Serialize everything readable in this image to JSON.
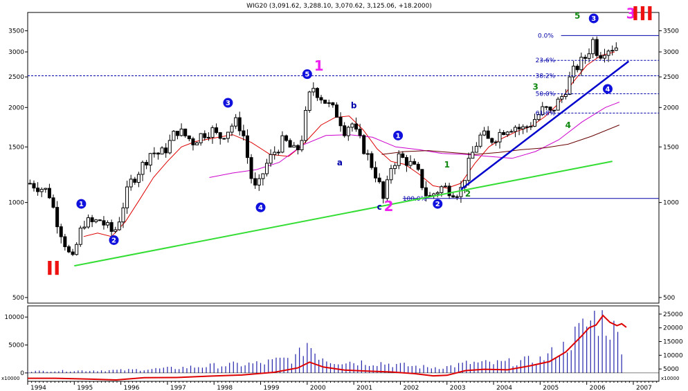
{
  "chart_data": [
    {
      "type": "candlestick",
      "title": "WIG20 (3,091.62, 3,288.10, 3,070.62, 3,125.06, +18.2000)",
      "y_scale": "log",
      "ylim": [
        480,
        4000
      ],
      "xlim": [
        1994.0,
        2007.55
      ],
      "y_ticks": [
        500,
        1000,
        1500,
        2000,
        2500,
        3000,
        3500
      ],
      "y_tick_labels": [
        "500",
        "1000",
        "1500",
        "2000",
        "2500",
        "3000",
        "3500"
      ],
      "x_ticks": [
        1994,
        1995,
        1996,
        1997,
        1998,
        1999,
        2000,
        2001,
        2002,
        2003,
        2004,
        2005,
        2006,
        2007
      ],
      "x_tick_labels": [
        "1994",
        "1995",
        "1996",
        "1997",
        "1998",
        "1999",
        "2000",
        "2001",
        "2002",
        "2003",
        "2004",
        "2005",
        "2006",
        "2007"
      ],
      "grid": false,
      "anchors": [
        [
          1994.05,
          1150
        ],
        [
          1994.25,
          1120
        ],
        [
          1994.45,
          1080
        ],
        [
          1994.6,
          900
        ],
        [
          1994.75,
          780
        ],
        [
          1994.95,
          640
        ],
        [
          1995.1,
          780
        ],
        [
          1995.2,
          870
        ],
        [
          1995.4,
          860
        ],
        [
          1995.55,
          880
        ],
        [
          1995.75,
          820
        ],
        [
          1995.85,
          800
        ],
        [
          1995.95,
          870
        ],
        [
          1996.2,
          1150
        ],
        [
          1996.45,
          1300
        ],
        [
          1996.65,
          1450
        ],
        [
          1996.85,
          1420
        ],
        [
          1997.0,
          1500
        ],
        [
          1997.2,
          1700
        ],
        [
          1997.4,
          1620
        ],
        [
          1997.55,
          1560
        ],
        [
          1997.75,
          1650
        ],
        [
          1997.95,
          1700
        ],
        [
          1998.1,
          1600
        ],
        [
          1998.3,
          1700
        ],
        [
          1998.45,
          1800
        ],
        [
          1998.6,
          1720
        ],
        [
          1998.75,
          1300
        ],
        [
          1998.85,
          1100
        ],
        [
          1998.95,
          1120
        ],
        [
          1999.1,
          1300
        ],
        [
          1999.3,
          1450
        ],
        [
          1999.5,
          1580
        ],
        [
          1999.7,
          1450
        ],
        [
          1999.85,
          1500
        ],
        [
          2000.0,
          2000
        ],
        [
          2000.1,
          2350
        ],
        [
          2000.25,
          2200
        ],
        [
          2000.5,
          2000
        ],
        [
          2000.65,
          1900
        ],
        [
          2000.8,
          1700
        ],
        [
          2000.95,
          1800
        ],
        [
          2001.05,
          1650
        ],
        [
          2001.2,
          1500
        ],
        [
          2001.35,
          1350
        ],
        [
          2001.5,
          1200
        ],
        [
          2001.65,
          1000
        ],
        [
          2001.8,
          1300
        ],
        [
          2001.95,
          1400
        ],
        [
          2002.15,
          1350
        ],
        [
          2002.3,
          1280
        ],
        [
          2002.4,
          1220
        ],
        [
          2002.5,
          1100
        ],
        [
          2002.6,
          1030
        ],
        [
          2002.75,
          1080
        ],
        [
          2002.9,
          1120
        ],
        [
          2003.05,
          1100
        ],
        [
          2003.2,
          1080
        ],
        [
          2003.3,
          1100
        ],
        [
          2003.45,
          1300
        ],
        [
          2003.6,
          1500
        ],
        [
          2003.75,
          1650
        ],
        [
          2003.9,
          1560
        ],
        [
          2004.05,
          1620
        ],
        [
          2004.25,
          1720
        ],
        [
          2004.45,
          1750
        ],
        [
          2004.6,
          1700
        ],
        [
          2004.75,
          1750
        ],
        [
          2004.9,
          1850
        ],
        [
          2005.1,
          2000
        ],
        [
          2005.2,
          1900
        ],
        [
          2005.35,
          2050
        ],
        [
          2005.5,
          2200
        ],
        [
          2005.6,
          2400
        ],
        [
          2005.75,
          2650
        ],
        [
          2005.95,
          2850
        ],
        [
          2006.05,
          3050
        ],
        [
          2006.15,
          3300
        ],
        [
          2006.25,
          2900
        ],
        [
          2006.35,
          3050
        ],
        [
          2006.5,
          3100
        ],
        [
          2006.7,
          3125
        ]
      ],
      "overlays": [
        {
          "name": "sma-short",
          "color": "#dd0000",
          "points": [
            [
              1995.2,
              780
            ],
            [
              1995.5,
              800
            ],
            [
              1995.8,
              780
            ],
            [
              1996.1,
              870
            ],
            [
              1996.4,
              1020
            ],
            [
              1996.7,
              1200
            ],
            [
              1997.0,
              1350
            ],
            [
              1997.3,
              1500
            ],
            [
              1997.6,
              1560
            ],
            [
              1998.0,
              1600
            ],
            [
              1998.4,
              1640
            ],
            [
              1998.8,
              1550
            ],
            [
              1999.2,
              1420
            ],
            [
              1999.6,
              1400
            ],
            [
              1999.9,
              1520
            ],
            [
              2000.3,
              1760
            ],
            [
              2000.6,
              1860
            ],
            [
              2000.9,
              1880
            ],
            [
              2001.2,
              1700
            ],
            [
              2001.5,
              1480
            ],
            [
              2001.8,
              1350
            ],
            [
              2002.1,
              1320
            ],
            [
              2002.4,
              1230
            ],
            [
              2002.7,
              1130
            ],
            [
              2003.0,
              1110
            ],
            [
              2003.3,
              1150
            ],
            [
              2003.6,
              1330
            ],
            [
              2003.9,
              1500
            ],
            [
              2004.2,
              1600
            ],
            [
              2004.5,
              1680
            ],
            [
              2004.8,
              1740
            ],
            [
              2005.1,
              1870
            ],
            [
              2005.4,
              2060
            ],
            [
              2005.7,
              2400
            ],
            [
              2006.0,
              2720
            ],
            [
              2006.3,
              2920
            ],
            [
              2006.6,
              3000
            ]
          ]
        },
        {
          "name": "sma-medium",
          "color": "#cc00cc",
          "points": [
            [
              1997.9,
              1200
            ],
            [
              1998.4,
              1240
            ],
            [
              1998.9,
              1270
            ],
            [
              1999.4,
              1340
            ],
            [
              1999.9,
              1520
            ],
            [
              2000.4,
              1630
            ],
            [
              2000.9,
              1640
            ],
            [
              2001.4,
              1610
            ],
            [
              2001.9,
              1500
            ],
            [
              2002.4,
              1470
            ],
            [
              2002.9,
              1430
            ],
            [
              2003.4,
              1420
            ],
            [
              2003.9,
              1400
            ],
            [
              2004.4,
              1380
            ],
            [
              2004.9,
              1450
            ],
            [
              2005.4,
              1580
            ],
            [
              2005.9,
              1800
            ],
            [
              2006.4,
              2000
            ],
            [
              2006.7,
              2080
            ]
          ]
        },
        {
          "name": "sma-long",
          "color": "#660000",
          "points": [
            [
              2001.6,
              1420
            ],
            [
              2002.1,
              1450
            ],
            [
              2002.6,
              1460
            ],
            [
              2003.1,
              1440
            ],
            [
              2003.6,
              1420
            ],
            [
              2004.1,
              1440
            ],
            [
              2004.6,
              1470
            ],
            [
              2005.1,
              1490
            ],
            [
              2005.6,
              1530
            ],
            [
              2006.1,
              1620
            ],
            [
              2006.7,
              1760
            ]
          ]
        }
      ],
      "trendlines": [
        {
          "name": "green-support-line",
          "color": "#33dd33",
          "from": [
            1995.0,
            630
          ],
          "to": [
            2006.55,
            1350
          ]
        },
        {
          "name": "blue-support-line",
          "color": "#0000cc",
          "from": [
            2003.3,
            1100
          ],
          "to": [
            2006.9,
            2800
          ]
        }
      ],
      "hlines": [
        {
          "name": "resistance-dashed-line",
          "y": 2520,
          "x_from": 1994.0,
          "x_to": 2007.55,
          "dashed": true
        },
        {
          "name": "fib-0-line",
          "y": 3380,
          "x_from": 2005.45,
          "x_to": 2007.55,
          "dashed": false
        },
        {
          "name": "fib-23-line",
          "y": 2820,
          "x_from": 2005.0,
          "x_to": 2007.55,
          "dashed": true
        },
        {
          "name": "fib-38-line",
          "y": 2520,
          "x_from": 2005.0,
          "x_to": 2007.55,
          "dashed": true
        },
        {
          "name": "fib-50-line",
          "y": 2210,
          "x_from": 2005.0,
          "x_to": 2007.55,
          "dashed": true
        },
        {
          "name": "fib-61-line",
          "y": 1920,
          "x_from": 2005.0,
          "x_to": 2007.55,
          "dashed": true
        },
        {
          "name": "fib-100-line",
          "y": 1030,
          "x_from": 2002.05,
          "x_to": 2007.55,
          "dashed": false
        }
      ],
      "fib_levels": [
        {
          "label": "0.0%",
          "y": 3380,
          "x": 2004.95
        },
        {
          "label": "23.6%",
          "y": 2820,
          "x": 2004.9
        },
        {
          "label": "38.2%",
          "y": 2520,
          "x": 2004.9
        },
        {
          "label": "50.0%",
          "y": 2210,
          "x": 2004.9
        },
        {
          "label": "61.8%",
          "y": 1920,
          "x": 2004.9
        },
        {
          "label": "100.0%",
          "y": 1030,
          "x": 2002.05
        }
      ],
      "wave_markers": [
        {
          "label": "1",
          "x": 1995.15,
          "y": 990
        },
        {
          "label": "2",
          "x": 1995.85,
          "y": 760
        },
        {
          "label": "3",
          "x": 1998.3,
          "y": 2070
        },
        {
          "label": "4",
          "x": 1999.0,
          "y": 965
        },
        {
          "label": "5",
          "x": 2000.0,
          "y": 2550
        },
        {
          "label": "1",
          "x": 2001.95,
          "y": 1630
        },
        {
          "label": "2",
          "x": 2002.8,
          "y": 990
        },
        {
          "label": "3",
          "x": 2006.15,
          "y": 3830
        },
        {
          "label": "4",
          "x": 2006.45,
          "y": 2290
        }
      ],
      "annotations": [
        {
          "label": "1",
          "x": 2000.25,
          "y": 2620,
          "color": "#ee22ee",
          "size": 20
        },
        {
          "label": "2",
          "x": 2001.75,
          "y": 940,
          "color": "#ee22ee",
          "size": 20
        },
        {
          "label": "3",
          "x": 2006.95,
          "y": 3830,
          "color": "#ee22ee",
          "size": 20
        },
        {
          "label": "II",
          "x": 1994.55,
          "y": 590,
          "color": "#ee1111",
          "size": 28
        },
        {
          "label": "III",
          "x": 2007.2,
          "y": 3780,
          "color": "#ee1111",
          "size": 28
        },
        {
          "label": "a",
          "x": 2000.7,
          "y": 1310,
          "color": "#0000aa",
          "size": 12
        },
        {
          "label": "b",
          "x": 2001.0,
          "y": 1990,
          "color": "#0000aa",
          "size": 12
        },
        {
          "label": "c",
          "x": 2001.55,
          "y": 950,
          "color": "#0000aa",
          "size": 12
        },
        {
          "label": "1",
          "x": 2003.0,
          "y": 1290,
          "color": "#118811",
          "size": 12
        },
        {
          "label": "2",
          "x": 2003.45,
          "y": 1045,
          "color": "#118811",
          "size": 12
        },
        {
          "label": "3",
          "x": 2004.9,
          "y": 2280,
          "color": "#118811",
          "size": 12
        },
        {
          "label": "4",
          "x": 2005.6,
          "y": 1720,
          "color": "#118811",
          "size": 12
        },
        {
          "label": "5",
          "x": 2005.8,
          "y": 3820,
          "color": "#118811",
          "size": 12
        }
      ]
    },
    {
      "type": "bar",
      "y_scale": "linear",
      "left_y_ticks": [
        0,
        5000,
        10000
      ],
      "left_y_tick_labels": [
        "0",
        "5000",
        "10000"
      ],
      "left_ylim": [
        -1500,
        12000
      ],
      "right_y_ticks": [
        5000,
        10000,
        15000,
        20000,
        25000
      ],
      "right_y_tick_labels": [
        "5000",
        "10000",
        "15000",
        "20000",
        "25000"
      ],
      "right_ylim": [
        500,
        28000
      ],
      "unit_label": "x10000",
      "volume_anchors": [
        [
          1994.0,
          300
        ],
        [
          1996.0,
          500
        ],
        [
          1997.0,
          800
        ],
        [
          1998.0,
          1300
        ],
        [
          1999.0,
          1700
        ],
        [
          1999.8,
          2800
        ],
        [
          2000.0,
          5500
        ],
        [
          2000.2,
          3500
        ],
        [
          2000.5,
          2200
        ],
        [
          2001.0,
          2000
        ],
        [
          2001.6,
          1800
        ],
        [
          2002.0,
          1400
        ],
        [
          2002.6,
          1000
        ],
        [
          2003.0,
          1100
        ],
        [
          2003.5,
          1800
        ],
        [
          2004.0,
          1700
        ],
        [
          2004.5,
          2000
        ],
        [
          2005.0,
          2400
        ],
        [
          2005.5,
          4500
        ],
        [
          2006.0,
          8500
        ],
        [
          2006.2,
          10000
        ],
        [
          2006.45,
          9000
        ],
        [
          2006.75,
          5500
        ]
      ],
      "line": {
        "name": "volume-average-line",
        "color": "#dd0000",
        "points": [
          [
            1994.0,
            1600
          ],
          [
            1994.6,
            1600
          ],
          [
            1995.3,
            1300
          ],
          [
            1995.9,
            1000
          ],
          [
            1996.5,
            1800
          ],
          [
            1997.2,
            1900
          ],
          [
            1997.9,
            2400
          ],
          [
            1998.6,
            2800
          ],
          [
            1999.3,
            3800
          ],
          [
            1999.8,
            5400
          ],
          [
            2000.05,
            7500
          ],
          [
            2000.35,
            5700
          ],
          [
            2000.8,
            4600
          ],
          [
            2001.3,
            4200
          ],
          [
            2001.8,
            3900
          ],
          [
            2002.3,
            3300
          ],
          [
            2002.7,
            2500
          ],
          [
            2003.0,
            2700
          ],
          [
            2003.4,
            4400
          ],
          [
            2003.8,
            4900
          ],
          [
            2004.3,
            4700
          ],
          [
            2004.8,
            6200
          ],
          [
            2005.2,
            7700
          ],
          [
            2005.55,
            11200
          ],
          [
            2005.9,
            17200
          ],
          [
            2006.05,
            20000
          ],
          [
            2006.2,
            21000
          ],
          [
            2006.35,
            24500
          ],
          [
            2006.5,
            22000
          ],
          [
            2006.65,
            20800
          ],
          [
            2006.75,
            21500
          ],
          [
            2006.85,
            20200
          ]
        ]
      }
    }
  ]
}
